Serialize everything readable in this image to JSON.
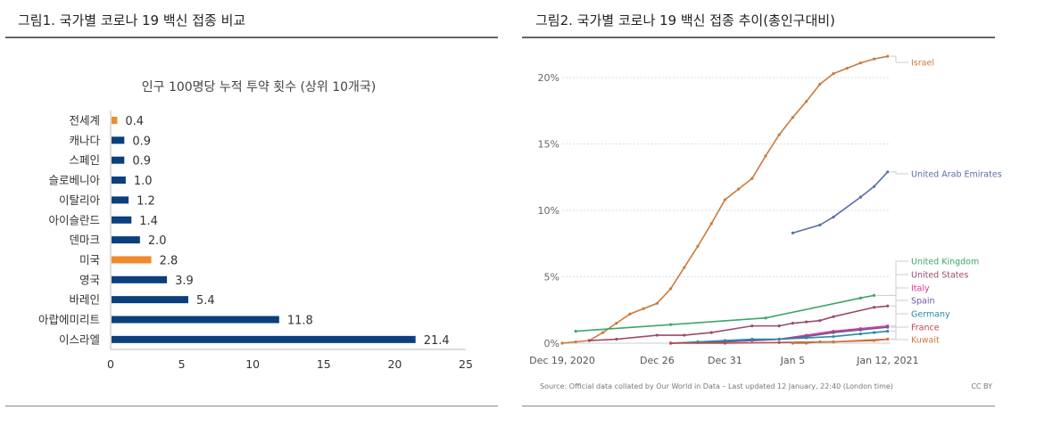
{
  "figure1": {
    "title": "그림1.  국가별 코로나 19 백신 접종 비교"
  },
  "figure2": {
    "title": "그림2.  국가별 코로나 19 백신 접종 추이(총인구대비)"
  },
  "chart_data": [
    {
      "type": "bar",
      "orientation": "horizontal",
      "title": "인구 100명당 누적 투약 횟수 (상위 10개국)",
      "categories": [
        "전세계",
        "캐나다",
        "스페인",
        "슬로베니아",
        "이탈리아",
        "아이슬란드",
        "덴마크",
        "미국",
        "영국",
        "바레인",
        "아랍에미리트",
        "이스라엘"
      ],
      "values": [
        0.4,
        0.9,
        0.9,
        1.0,
        1.2,
        1.4,
        2.0,
        2.8,
        3.9,
        5.4,
        11.8,
        21.4
      ],
      "value_labels": [
        "0.4",
        "0.9",
        "0.9",
        "1.0",
        "1.2",
        "1.4",
        "2.0",
        "2.8",
        "3.9",
        "5.4",
        "11.8",
        "21.4"
      ],
      "highlight": [
        "전세계",
        "미국"
      ],
      "colors": {
        "default": "#0b3f7e",
        "highlight": "#f08a2c"
      },
      "xlim": [
        0,
        25
      ],
      "xticks": [
        "0",
        "5",
        "10",
        "15",
        "20",
        "25"
      ],
      "grid": false
    },
    {
      "type": "line",
      "x_start": "2020-12-19",
      "x_ticks": [
        "Dec 19, 2020",
        "Dec 26",
        "Dec 31",
        "Jan 5",
        "Jan 12, 2021"
      ],
      "y_ticks": [
        "0%",
        "5%",
        "10%",
        "15%",
        "20%"
      ],
      "ylim": [
        0,
        22
      ],
      "grid": true,
      "source": "Source: Official data collated by Our World in Data – Last updated 12 January, 22:40 (London time)",
      "license": "CC BY",
      "series": [
        {
          "name": "Israel",
          "color": "#cc7a3e",
          "x": [
            "2020-12-19",
            "2020-12-20",
            "2020-12-21",
            "2020-12-22",
            "2020-12-23",
            "2020-12-24",
            "2020-12-25",
            "2020-12-26",
            "2020-12-27",
            "2020-12-28",
            "2020-12-29",
            "2020-12-30",
            "2020-12-31",
            "2021-01-01",
            "2021-01-02",
            "2021-01-03",
            "2021-01-04",
            "2021-01-05",
            "2021-01-06",
            "2021-01-07",
            "2021-01-08",
            "2021-01-09",
            "2021-01-10",
            "2021-01-11",
            "2021-01-12"
          ],
          "y": [
            0,
            0.1,
            0.2,
            0.8,
            1.5,
            2.2,
            2.6,
            3.0,
            4.1,
            5.7,
            7.3,
            9.0,
            10.8,
            11.6,
            12.4,
            14.1,
            15.7,
            17.0,
            18.2,
            19.5,
            20.3,
            20.7,
            21.1,
            21.4,
            21.6
          ]
        },
        {
          "name": "United Arab Emirates",
          "color": "#5a6ea6",
          "x": [
            "2021-01-05",
            "2021-01-07",
            "2021-01-08",
            "2021-01-10",
            "2021-01-11",
            "2021-01-12"
          ],
          "y": [
            8.3,
            8.9,
            9.5,
            11.0,
            11.8,
            12.9
          ]
        },
        {
          "name": "United Kingdom",
          "color": "#3ea46a",
          "x": [
            "2020-12-20",
            "2020-12-27",
            "2021-01-03",
            "2021-01-10",
            "2021-01-11"
          ],
          "y": [
            0.9,
            1.4,
            1.9,
            3.4,
            3.6
          ]
        },
        {
          "name": "United States",
          "color": "#9c4a6c",
          "x": [
            "2020-12-21",
            "2020-12-23",
            "2020-12-26",
            "2020-12-28",
            "2020-12-30",
            "2021-01-02",
            "2021-01-04",
            "2021-01-05",
            "2021-01-06",
            "2021-01-07",
            "2021-01-08",
            "2021-01-11",
            "2021-01-12"
          ],
          "y": [
            0.2,
            0.3,
            0.6,
            0.6,
            0.8,
            1.3,
            1.3,
            1.5,
            1.6,
            1.7,
            2.0,
            2.7,
            2.8
          ]
        },
        {
          "name": "Italy",
          "color": "#e0368a",
          "x": [
            "2020-12-27",
            "2020-12-29",
            "2020-12-31",
            "2021-01-02",
            "2021-01-04",
            "2021-01-06",
            "2021-01-08",
            "2021-01-10",
            "2021-01-12"
          ],
          "y": [
            0,
            0.05,
            0.1,
            0.2,
            0.3,
            0.6,
            0.9,
            1.1,
            1.3
          ]
        },
        {
          "name": "Spain",
          "color": "#6a58a8",
          "x": [
            "2020-12-27",
            "2020-12-29",
            "2020-12-31",
            "2021-01-02",
            "2021-01-04",
            "2021-01-06",
            "2021-01-08",
            "2021-01-10",
            "2021-01-12"
          ],
          "y": [
            0,
            0.05,
            0.1,
            0.2,
            0.3,
            0.5,
            0.8,
            1.0,
            1.2
          ]
        },
        {
          "name": "Germany",
          "color": "#2a8c9c",
          "x": [
            "2020-12-27",
            "2020-12-29",
            "2020-12-31",
            "2021-01-02",
            "2021-01-04",
            "2021-01-06",
            "2021-01-08",
            "2021-01-10",
            "2021-01-11",
            "2021-01-12"
          ],
          "y": [
            0,
            0.1,
            0.2,
            0.3,
            0.3,
            0.4,
            0.5,
            0.7,
            0.8,
            0.9
          ]
        },
        {
          "name": "France",
          "color": "#c24848",
          "x": [
            "2020-12-27",
            "2020-12-31",
            "2021-01-04",
            "2021-01-08",
            "2021-01-12"
          ],
          "y": [
            0,
            0.0,
            0.05,
            0.1,
            0.3
          ]
        },
        {
          "name": "Kuwait",
          "color": "#d0763a",
          "x": [
            "2021-01-05",
            "2021-01-06",
            "2021-01-07",
            "2021-01-08",
            "2021-01-11",
            "2021-01-12"
          ],
          "y": [
            0,
            0.0,
            0.1,
            0.1,
            0.2,
            0.3
          ]
        }
      ]
    }
  ]
}
